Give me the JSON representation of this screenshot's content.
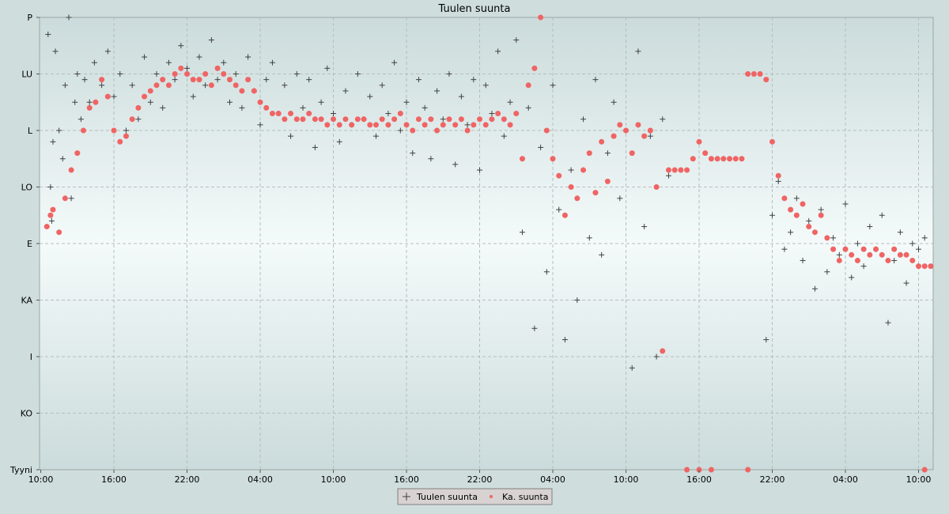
{
  "chart_data": {
    "type": "scatter",
    "title": "Tuulen suunta",
    "xlabel": "",
    "ylabel": "",
    "grid": true,
    "legend_position": "bottom-center",
    "y_categories": [
      "Tyyni",
      "KO",
      "I",
      "KA",
      "E",
      "LO",
      "L",
      "LU",
      "P"
    ],
    "x_tick_labels": [
      "10:00",
      "16:00",
      "22:00",
      "04:00",
      "10:00",
      "16:00",
      "22:00",
      "04:00",
      "10:00",
      "16:00",
      "22:00",
      "04:00",
      "10:00"
    ],
    "x_unit": "hours since first tick (10:00)",
    "xlim": [
      -0.1,
      73.2
    ],
    "ylim": [
      0,
      8
    ],
    "colors": {
      "background_top": "#cbdbdb",
      "background_mid": "#f4fafa",
      "grid": "#b5bebe",
      "raw_marker": "#404040",
      "avg_marker": "#f06464"
    },
    "series": [
      {
        "name": "Tuulen suunta",
        "marker": "plus",
        "color": "#404040",
        "points": [
          [
            0.6,
            7.7
          ],
          [
            0.8,
            5.0
          ],
          [
            0.9,
            4.4
          ],
          [
            1.0,
            5.8
          ],
          [
            1.2,
            7.4
          ],
          [
            1.5,
            6.0
          ],
          [
            1.8,
            5.5
          ],
          [
            2.0,
            6.8
          ],
          [
            2.3,
            8.0
          ],
          [
            2.5,
            4.8
          ],
          [
            2.8,
            6.5
          ],
          [
            3.0,
            7.0
          ],
          [
            3.3,
            6.2
          ],
          [
            3.6,
            6.9
          ],
          [
            4.0,
            6.5
          ],
          [
            4.4,
            7.2
          ],
          [
            5.0,
            6.8
          ],
          [
            5.5,
            7.4
          ],
          [
            6.0,
            6.6
          ],
          [
            6.5,
            7.0
          ],
          [
            7.0,
            6.0
          ],
          [
            7.5,
            6.8
          ],
          [
            8.0,
            6.2
          ],
          [
            8.5,
            7.3
          ],
          [
            9.0,
            6.5
          ],
          [
            9.5,
            7.0
          ],
          [
            10.0,
            6.4
          ],
          [
            10.5,
            7.2
          ],
          [
            11.0,
            6.9
          ],
          [
            11.5,
            7.5
          ],
          [
            12.0,
            7.1
          ],
          [
            12.5,
            6.6
          ],
          [
            13.0,
            7.3
          ],
          [
            13.5,
            6.8
          ],
          [
            14.0,
            7.6
          ],
          [
            14.5,
            6.9
          ],
          [
            15.0,
            7.2
          ],
          [
            15.5,
            6.5
          ],
          [
            16.0,
            7.0
          ],
          [
            16.5,
            6.4
          ],
          [
            17.0,
            7.3
          ],
          [
            17.5,
            6.7
          ],
          [
            18.0,
            6.1
          ],
          [
            18.5,
            6.9
          ],
          [
            19.0,
            7.2
          ],
          [
            19.5,
            6.3
          ],
          [
            20.0,
            6.8
          ],
          [
            20.5,
            5.9
          ],
          [
            21.0,
            7.0
          ],
          [
            21.5,
            6.4
          ],
          [
            22.0,
            6.9
          ],
          [
            22.5,
            5.7
          ],
          [
            23.0,
            6.5
          ],
          [
            23.5,
            7.1
          ],
          [
            24.0,
            6.3
          ],
          [
            24.5,
            5.8
          ],
          [
            25.0,
            6.7
          ],
          [
            25.5,
            6.1
          ],
          [
            26.0,
            7.0
          ],
          [
            26.5,
            6.2
          ],
          [
            27.0,
            6.6
          ],
          [
            27.5,
            5.9
          ],
          [
            28.0,
            6.8
          ],
          [
            28.5,
            6.3
          ],
          [
            29.0,
            7.2
          ],
          [
            29.5,
            6.0
          ],
          [
            30.0,
            6.5
          ],
          [
            30.5,
            5.6
          ],
          [
            31.0,
            6.9
          ],
          [
            31.5,
            6.4
          ],
          [
            32.0,
            5.5
          ],
          [
            32.5,
            6.7
          ],
          [
            33.0,
            6.2
          ],
          [
            33.5,
            7.0
          ],
          [
            34.0,
            5.4
          ],
          [
            34.5,
            6.6
          ],
          [
            35.0,
            6.1
          ],
          [
            35.5,
            6.9
          ],
          [
            36.0,
            5.3
          ],
          [
            36.5,
            6.8
          ],
          [
            37.0,
            6.3
          ],
          [
            37.5,
            7.4
          ],
          [
            38.0,
            5.9
          ],
          [
            38.5,
            6.5
          ],
          [
            39.0,
            7.6
          ],
          [
            39.5,
            4.2
          ],
          [
            40.0,
            6.4
          ],
          [
            40.5,
            2.5
          ],
          [
            41.0,
            5.7
          ],
          [
            41.5,
            3.5
          ],
          [
            42.0,
            6.8
          ],
          [
            42.5,
            4.6
          ],
          [
            43.0,
            2.3
          ],
          [
            43.5,
            5.3
          ],
          [
            44.0,
            3.0
          ],
          [
            44.5,
            6.2
          ],
          [
            45.0,
            4.1
          ],
          [
            45.5,
            6.9
          ],
          [
            46.0,
            3.8
          ],
          [
            46.5,
            5.6
          ],
          [
            47.0,
            6.5
          ],
          [
            47.5,
            4.8
          ],
          [
            48.0,
            6.0
          ],
          [
            48.5,
            1.8
          ],
          [
            49.0,
            7.4
          ],
          [
            49.5,
            4.3
          ],
          [
            50.0,
            5.9
          ],
          [
            50.5,
            2.0
          ],
          [
            51.0,
            6.2
          ],
          [
            51.5,
            5.2
          ],
          [
            59.5,
            2.3
          ],
          [
            60.0,
            4.5
          ],
          [
            60.5,
            5.1
          ],
          [
            61.0,
            3.9
          ],
          [
            61.5,
            4.2
          ],
          [
            62.0,
            4.8
          ],
          [
            62.5,
            3.7
          ],
          [
            63.0,
            4.4
          ],
          [
            63.5,
            3.2
          ],
          [
            64.0,
            4.6
          ],
          [
            64.5,
            3.5
          ],
          [
            65.0,
            4.1
          ],
          [
            65.5,
            3.8
          ],
          [
            66.0,
            4.7
          ],
          [
            66.5,
            3.4
          ],
          [
            67.0,
            4.0
          ],
          [
            67.5,
            3.6
          ],
          [
            68.0,
            4.3
          ],
          [
            68.5,
            3.9
          ],
          [
            69.0,
            4.5
          ],
          [
            69.5,
            2.6
          ],
          [
            70.0,
            3.7
          ],
          [
            70.5,
            4.2
          ],
          [
            71.0,
            3.3
          ],
          [
            71.5,
            4.0
          ],
          [
            72.0,
            3.9
          ],
          [
            72.5,
            4.1
          ]
        ]
      },
      {
        "name": "Ka. suunta",
        "marker": "dot",
        "color": "#f06464",
        "points": [
          [
            0.5,
            4.3
          ],
          [
            0.8,
            4.5
          ],
          [
            1.0,
            4.6
          ],
          [
            1.5,
            4.2
          ],
          [
            2.0,
            4.8
          ],
          [
            2.5,
            5.3
          ],
          [
            3.0,
            5.6
          ],
          [
            3.5,
            6.0
          ],
          [
            4.0,
            6.4
          ],
          [
            4.5,
            6.5
          ],
          [
            5.0,
            6.9
          ],
          [
            5.5,
            6.6
          ],
          [
            6.0,
            6.0
          ],
          [
            6.5,
            5.8
          ],
          [
            7.0,
            5.9
          ],
          [
            7.5,
            6.2
          ],
          [
            8.0,
            6.4
          ],
          [
            8.5,
            6.6
          ],
          [
            9.0,
            6.7
          ],
          [
            9.5,
            6.8
          ],
          [
            10.0,
            6.9
          ],
          [
            10.5,
            6.8
          ],
          [
            11.0,
            7.0
          ],
          [
            11.5,
            7.1
          ],
          [
            12.0,
            7.0
          ],
          [
            12.5,
            6.9
          ],
          [
            13.0,
            6.9
          ],
          [
            13.5,
            7.0
          ],
          [
            14.0,
            6.8
          ],
          [
            14.5,
            7.1
          ],
          [
            15.0,
            7.0
          ],
          [
            15.5,
            6.9
          ],
          [
            16.0,
            6.8
          ],
          [
            16.5,
            6.7
          ],
          [
            17.0,
            6.9
          ],
          [
            17.5,
            6.7
          ],
          [
            18.0,
            6.5
          ],
          [
            18.5,
            6.4
          ],
          [
            19.0,
            6.3
          ],
          [
            19.5,
            6.3
          ],
          [
            20.0,
            6.2
          ],
          [
            20.5,
            6.3
          ],
          [
            21.0,
            6.2
          ],
          [
            21.5,
            6.2
          ],
          [
            22.0,
            6.3
          ],
          [
            22.5,
            6.2
          ],
          [
            23.0,
            6.2
          ],
          [
            23.5,
            6.1
          ],
          [
            24.0,
            6.2
          ],
          [
            24.5,
            6.1
          ],
          [
            25.0,
            6.2
          ],
          [
            25.5,
            6.1
          ],
          [
            26.0,
            6.2
          ],
          [
            26.5,
            6.2
          ],
          [
            27.0,
            6.1
          ],
          [
            27.5,
            6.1
          ],
          [
            28.0,
            6.2
          ],
          [
            28.5,
            6.1
          ],
          [
            29.0,
            6.2
          ],
          [
            29.5,
            6.3
          ],
          [
            30.0,
            6.1
          ],
          [
            30.5,
            6.0
          ],
          [
            31.0,
            6.2
          ],
          [
            31.5,
            6.1
          ],
          [
            32.0,
            6.2
          ],
          [
            32.5,
            6.0
          ],
          [
            33.0,
            6.1
          ],
          [
            33.5,
            6.2
          ],
          [
            34.0,
            6.1
          ],
          [
            34.5,
            6.2
          ],
          [
            35.0,
            6.0
          ],
          [
            35.5,
            6.1
          ],
          [
            36.0,
            6.2
          ],
          [
            36.5,
            6.1
          ],
          [
            37.0,
            6.2
          ],
          [
            37.5,
            6.3
          ],
          [
            38.0,
            6.2
          ],
          [
            38.5,
            6.1
          ],
          [
            39.0,
            6.3
          ],
          [
            39.5,
            5.5
          ],
          [
            40.0,
            6.8
          ],
          [
            40.5,
            7.1
          ],
          [
            41.0,
            8.0
          ],
          [
            41.5,
            6.0
          ],
          [
            42.0,
            5.5
          ],
          [
            42.5,
            5.2
          ],
          [
            43.0,
            4.5
          ],
          [
            43.5,
            5.0
          ],
          [
            44.0,
            4.8
          ],
          [
            44.5,
            5.3
          ],
          [
            45.0,
            5.6
          ],
          [
            45.5,
            4.9
          ],
          [
            46.0,
            5.8
          ],
          [
            46.5,
            5.1
          ],
          [
            47.0,
            5.9
          ],
          [
            47.5,
            6.1
          ],
          [
            48.0,
            6.0
          ],
          [
            48.5,
            5.6
          ],
          [
            49.0,
            6.1
          ],
          [
            49.5,
            5.9
          ],
          [
            50.0,
            6.0
          ],
          [
            50.5,
            5.0
          ],
          [
            51.0,
            2.1
          ],
          [
            51.5,
            5.3
          ],
          [
            52.0,
            5.3
          ],
          [
            52.5,
            5.3
          ],
          [
            53.0,
            5.3
          ],
          [
            53.5,
            5.5
          ],
          [
            54.0,
            5.8
          ],
          [
            54.5,
            5.6
          ],
          [
            55.0,
            5.5
          ],
          [
            55.5,
            5.5
          ],
          [
            56.0,
            5.5
          ],
          [
            56.5,
            5.5
          ],
          [
            57.0,
            5.5
          ],
          [
            57.5,
            5.5
          ],
          [
            58.0,
            7.0
          ],
          [
            58.5,
            7.0
          ],
          [
            59.0,
            7.0
          ],
          [
            59.5,
            6.9
          ],
          [
            60.0,
            5.8
          ],
          [
            60.5,
            5.2
          ],
          [
            61.0,
            4.8
          ],
          [
            61.5,
            4.6
          ],
          [
            62.0,
            4.5
          ],
          [
            62.5,
            4.7
          ],
          [
            63.0,
            4.3
          ],
          [
            63.5,
            4.2
          ],
          [
            64.0,
            4.5
          ],
          [
            64.5,
            4.1
          ],
          [
            65.0,
            3.9
          ],
          [
            65.5,
            3.7
          ],
          [
            66.0,
            3.9
          ],
          [
            66.5,
            3.8
          ],
          [
            67.0,
            3.7
          ],
          [
            67.5,
            3.9
          ],
          [
            68.0,
            3.8
          ],
          [
            68.5,
            3.9
          ],
          [
            69.0,
            3.8
          ],
          [
            69.5,
            3.7
          ],
          [
            70.0,
            3.9
          ],
          [
            70.5,
            3.8
          ],
          [
            71.0,
            3.8
          ],
          [
            71.5,
            3.7
          ],
          [
            72.0,
            3.6
          ],
          [
            72.5,
            3.6
          ],
          [
            73.0,
            3.6
          ],
          [
            53.0,
            0.0
          ],
          [
            54.0,
            0.0
          ],
          [
            55.0,
            0.0
          ],
          [
            58.0,
            0.0
          ],
          [
            72.5,
            0.0
          ]
        ]
      }
    ]
  }
}
